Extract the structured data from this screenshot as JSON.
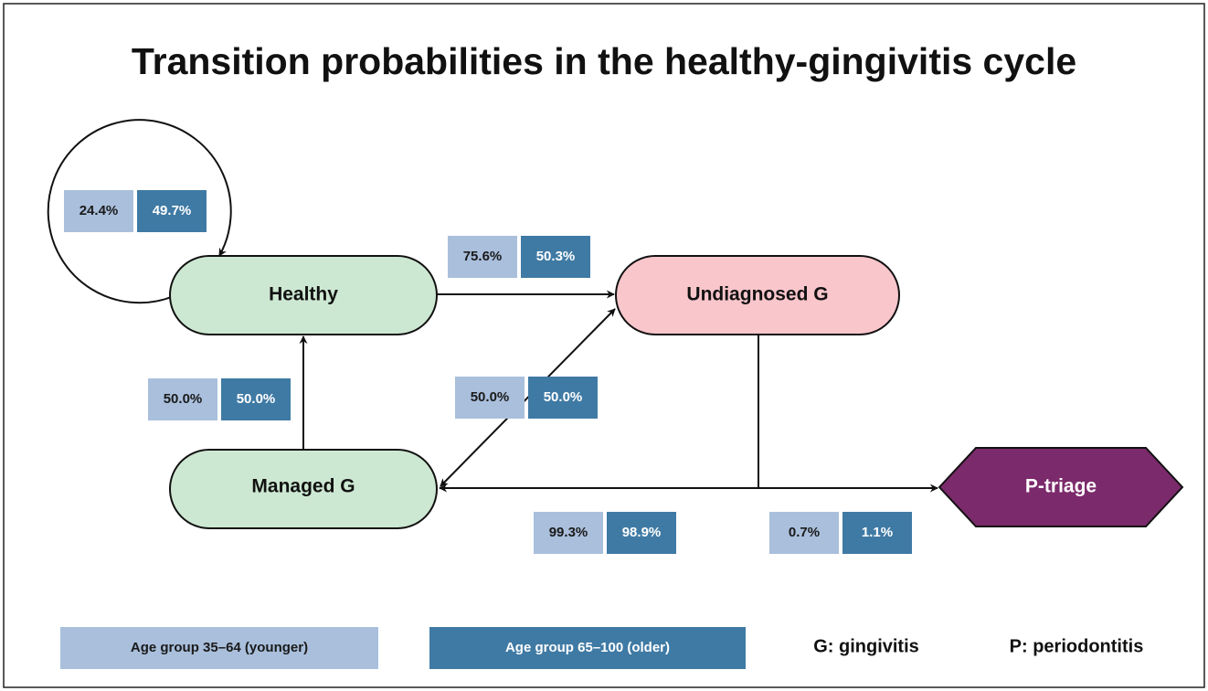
{
  "title": "Transition probabilities in the healthy-gingivitis cycle",
  "nodes": [
    {
      "label": "Healthy"
    },
    {
      "label": "Undiagnosed G"
    },
    {
      "label": "Managed G"
    },
    {
      "label": "P-triage"
    }
  ],
  "edges": [
    {
      "younger": "24.4%",
      "older": "49.7%"
    },
    {
      "younger": "75.6%",
      "older": "50.3%"
    },
    {
      "younger": "50.0%",
      "older": "50.0%"
    },
    {
      "younger": "50.0%",
      "older": "50.0%"
    },
    {
      "younger": "99.3%",
      "older": "98.9%"
    },
    {
      "younger": "0.7%",
      "older": "1.1%"
    }
  ],
  "legend": {
    "younger": "Age group 35–64 (younger)",
    "older": "Age group 65–100 (older)",
    "notes": [
      "G: gingivitis",
      "P: periodontitis"
    ]
  }
}
